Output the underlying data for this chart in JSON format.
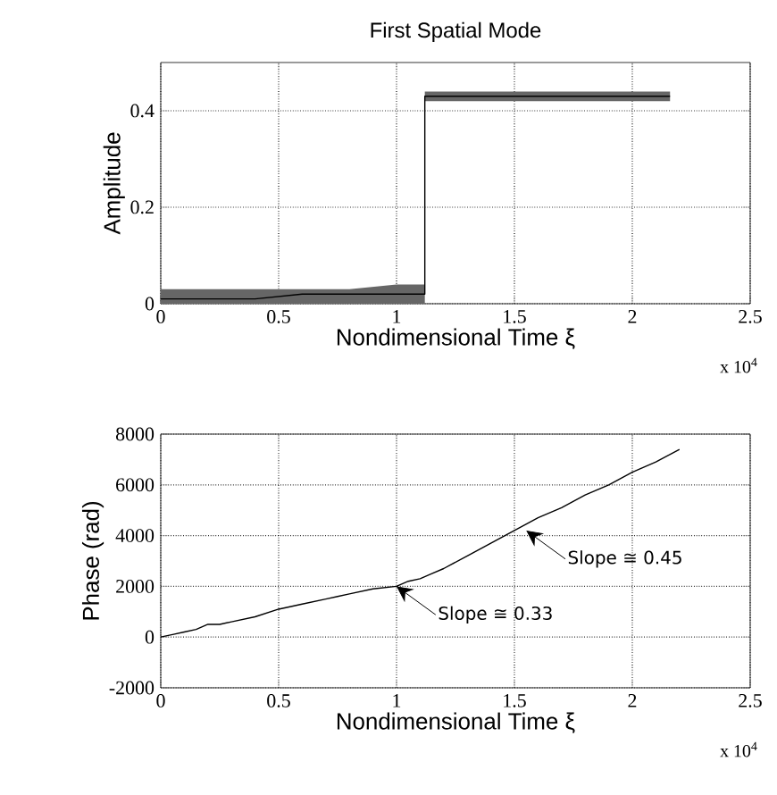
{
  "chart_data": [
    {
      "type": "line",
      "title": "First Spatial Mode",
      "xlabel": "Nondimensional Time ξ",
      "ylabel": "Amplitude",
      "series": [
        {
          "color": "#000000",
          "x": [
            0,
            0.2,
            0.4,
            0.6,
            0.8,
            1.0,
            1.12,
            1.12,
            1.3,
            1.5,
            1.7,
            1.9,
            2.16
          ],
          "values": [
            0.01,
            0.01,
            0.01,
            0.02,
            0.02,
            0.02,
            0.02,
            0.43,
            0.43,
            0.43,
            0.43,
            0.43,
            0.43
          ],
          "lower": [
            0,
            0,
            0,
            0,
            0,
            0,
            0,
            0.42,
            0.42,
            0.42,
            0.42,
            0.42,
            0.42
          ],
          "upper": [
            0.03,
            0.03,
            0.03,
            0.03,
            0.03,
            0.04,
            0.04,
            0.44,
            0.44,
            0.44,
            0.44,
            0.44,
            0.44
          ]
        }
      ],
      "xlim": [
        0,
        2.5
      ],
      "xticks": [
        0,
        0.5,
        1,
        1.5,
        2,
        2.5
      ],
      "ylim": [
        0,
        0.5
      ],
      "yticks": [
        0,
        0.2,
        0.4
      ],
      "grid": true,
      "annotations": [
        "x 10$^{4}$"
      ]
    },
    {
      "type": "line",
      "xlabel": "Nondimensional Time ξ",
      "ylabel": "Phase (rad)",
      "series": [
        {
          "color": "#000000",
          "x": [
            0,
            0.05,
            0.1,
            0.15,
            0.2,
            0.25,
            0.3,
            0.4,
            0.5,
            0.6,
            0.7,
            0.75,
            0.8,
            0.9,
            1.0,
            1.05,
            1.1,
            1.15,
            1.2,
            1.3,
            1.4,
            1.5,
            1.6,
            1.7,
            1.8,
            1.9,
            2.0,
            2.1,
            2.2
          ],
          "values": [
            0,
            100,
            200,
            300,
            500,
            500,
            600,
            800,
            1100,
            1300,
            1500,
            1600,
            1700,
            1900,
            2000,
            2200,
            2300,
            2500,
            2700,
            3200,
            3700,
            4200,
            4700,
            5100,
            5600,
            6000,
            6500,
            6900,
            7400
          ]
        }
      ],
      "xlim": [
        0,
        2.5
      ],
      "xticks": [
        0,
        0.5,
        1,
        1.5,
        2,
        2.5
      ],
      "ylim": [
        -2000,
        8000
      ],
      "yticks": [
        -2000,
        0,
        2000,
        4000,
        6000,
        8000
      ],
      "grid": true,
      "annotations": [
        {
          "text": "Slope ≅ 0.33",
          "x": 1.0,
          "y": 2000
        },
        {
          "text": "Slope ≅ 0.45",
          "x": 1.55,
          "y": 4200
        },
        "x 10$^{4}$"
      ]
    }
  ]
}
